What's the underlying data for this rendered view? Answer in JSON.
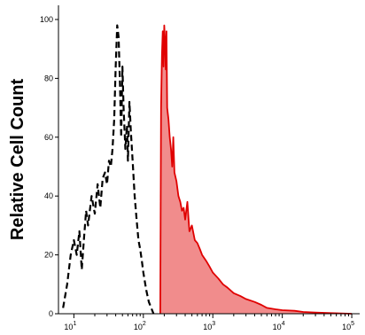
{
  "chart_data": {
    "type": "area",
    "title": "",
    "xlabel": "",
    "ylabel": "Relative Cell Count",
    "x_scale": "log",
    "xlim": [
      6,
      130000
    ],
    "ylim": [
      0,
      100
    ],
    "y_ticks": [
      0,
      20,
      40,
      60,
      80,
      100
    ],
    "y_tick_labels": [
      "0",
      "20",
      "40",
      "60",
      "80",
      "100"
    ],
    "x_ticks": [
      10,
      100,
      1000,
      10000,
      100000
    ],
    "x_tick_labels": [
      {
        "base": "10",
        "exp": "1"
      },
      {
        "base": "10",
        "exp": "2"
      },
      {
        "base": "10",
        "exp": "3"
      },
      {
        "base": "10",
        "exp": "4"
      },
      {
        "base": "10",
        "exp": "5"
      }
    ],
    "grid": false,
    "legend": "none",
    "series": [
      {
        "style": "dashed",
        "color": "#000000",
        "fill": "none",
        "x": [
          7,
          8,
          9,
          10,
          11,
          12,
          13,
          14,
          15,
          16,
          18,
          20,
          22,
          24,
          26,
          28,
          30,
          32,
          34,
          36,
          38,
          40,
          42,
          44,
          46,
          48,
          50,
          52,
          55,
          58,
          60,
          63,
          66,
          70,
          75,
          80,
          85,
          90,
          95,
          100,
          110,
          120,
          140
        ],
        "y": [
          2,
          10,
          20,
          25,
          20,
          28,
          15,
          26,
          35,
          30,
          40,
          34,
          44,
          36,
          46,
          48,
          44,
          52,
          50,
          56,
          66,
          84,
          98,
          94,
          78,
          60,
          84,
          70,
          56,
          64,
          52,
          72,
          62,
          52,
          40,
          32,
          25,
          22,
          18,
          14,
          8,
          4,
          0
        ]
      },
      {
        "style": "solid",
        "color": "#e00000",
        "fill": "#f08080",
        "x": [
          175,
          180,
          185,
          190,
          195,
          200,
          205,
          210,
          215,
          220,
          230,
          240,
          250,
          260,
          270,
          280,
          300,
          320,
          340,
          360,
          380,
          400,
          430,
          460,
          500,
          550,
          600,
          650,
          700,
          800,
          900,
          1000,
          1200,
          1400,
          1600,
          2000,
          2500,
          3000,
          4000,
          5000,
          6000,
          8000,
          10000,
          15000,
          20000,
          30000,
          50000,
          100000
        ],
        "y": [
          0,
          70,
          88,
          96,
          84,
          98,
          92,
          83,
          96,
          70,
          66,
          60,
          56,
          50,
          60,
          48,
          45,
          40,
          38,
          35,
          36,
          32,
          38,
          28,
          30,
          25,
          24,
          22,
          20,
          18,
          16,
          14,
          12,
          10,
          9,
          7,
          6,
          5,
          4,
          3,
          2,
          1.5,
          1.2,
          1,
          0.6,
          0.4,
          0.2,
          0
        ]
      }
    ]
  }
}
